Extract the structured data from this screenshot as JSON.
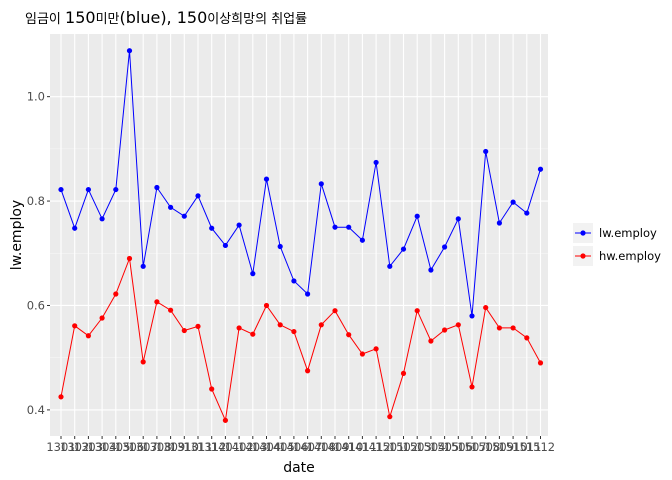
{
  "chart_data": {
    "type": "line",
    "title": "임금이 150미만(blue), 150이상희망의 취업률",
    "title_parts": {
      "part1": "임금이 ",
      "part2": "150",
      "part3": "미만",
      "part4": "(blue), 150",
      "part5": "이상희망의 취업률"
    },
    "xlabel": "date",
    "ylabel": "lw.employ",
    "ylim": [
      0.35,
      1.12
    ],
    "yticks": [
      "0.4",
      "0.6",
      "0.8",
      "1.0"
    ],
    "ytick_values": [
      0.4,
      0.6,
      0.8,
      1.0
    ],
    "grid": true,
    "legend_position": "right",
    "x_tick_labels": [
      "1301",
      "1302",
      "1303",
      "1304",
      "1305",
      "1306",
      "1307",
      "1308",
      "1309",
      "1310",
      "1311",
      "1312",
      "1401",
      "1402",
      "1403",
      "1404",
      "1405",
      "1406",
      "1407",
      "1408",
      "1409",
      "1410",
      "1411",
      "1412",
      "1501",
      "1502",
      "1503",
      "1504",
      "1505",
      "1506",
      "1507",
      "1508",
      "1509",
      "1510",
      "1511",
      "1512"
    ],
    "series": [
      {
        "name": "lw.employ",
        "color": "#0000ff",
        "values": [
          0.822,
          0.748,
          0.822,
          0.766,
          0.822,
          1.088,
          0.675,
          0.826,
          0.788,
          0.771,
          0.81,
          0.748,
          0.715,
          0.754,
          0.661,
          0.842,
          0.713,
          0.647,
          0.622,
          0.833,
          0.75,
          0.75,
          0.725,
          0.874,
          0.675,
          0.708,
          0.771,
          0.668,
          0.712,
          0.766,
          0.58,
          0.895,
          0.758,
          0.798,
          0.777,
          0.861
        ]
      },
      {
        "name": "hw.employ",
        "color": "#ff0000",
        "values": [
          0.425,
          0.561,
          0.542,
          0.576,
          0.622,
          0.69,
          0.492,
          0.607,
          0.591,
          0.552,
          0.56,
          0.44,
          0.38,
          0.557,
          0.545,
          0.6,
          0.563,
          0.55,
          0.475,
          0.563,
          0.59,
          0.544,
          0.507,
          0.517,
          0.387,
          0.47,
          0.59,
          0.532,
          0.553,
          0.563,
          0.444,
          0.596,
          0.557,
          0.557,
          0.538,
          0.49
        ]
      }
    ]
  }
}
